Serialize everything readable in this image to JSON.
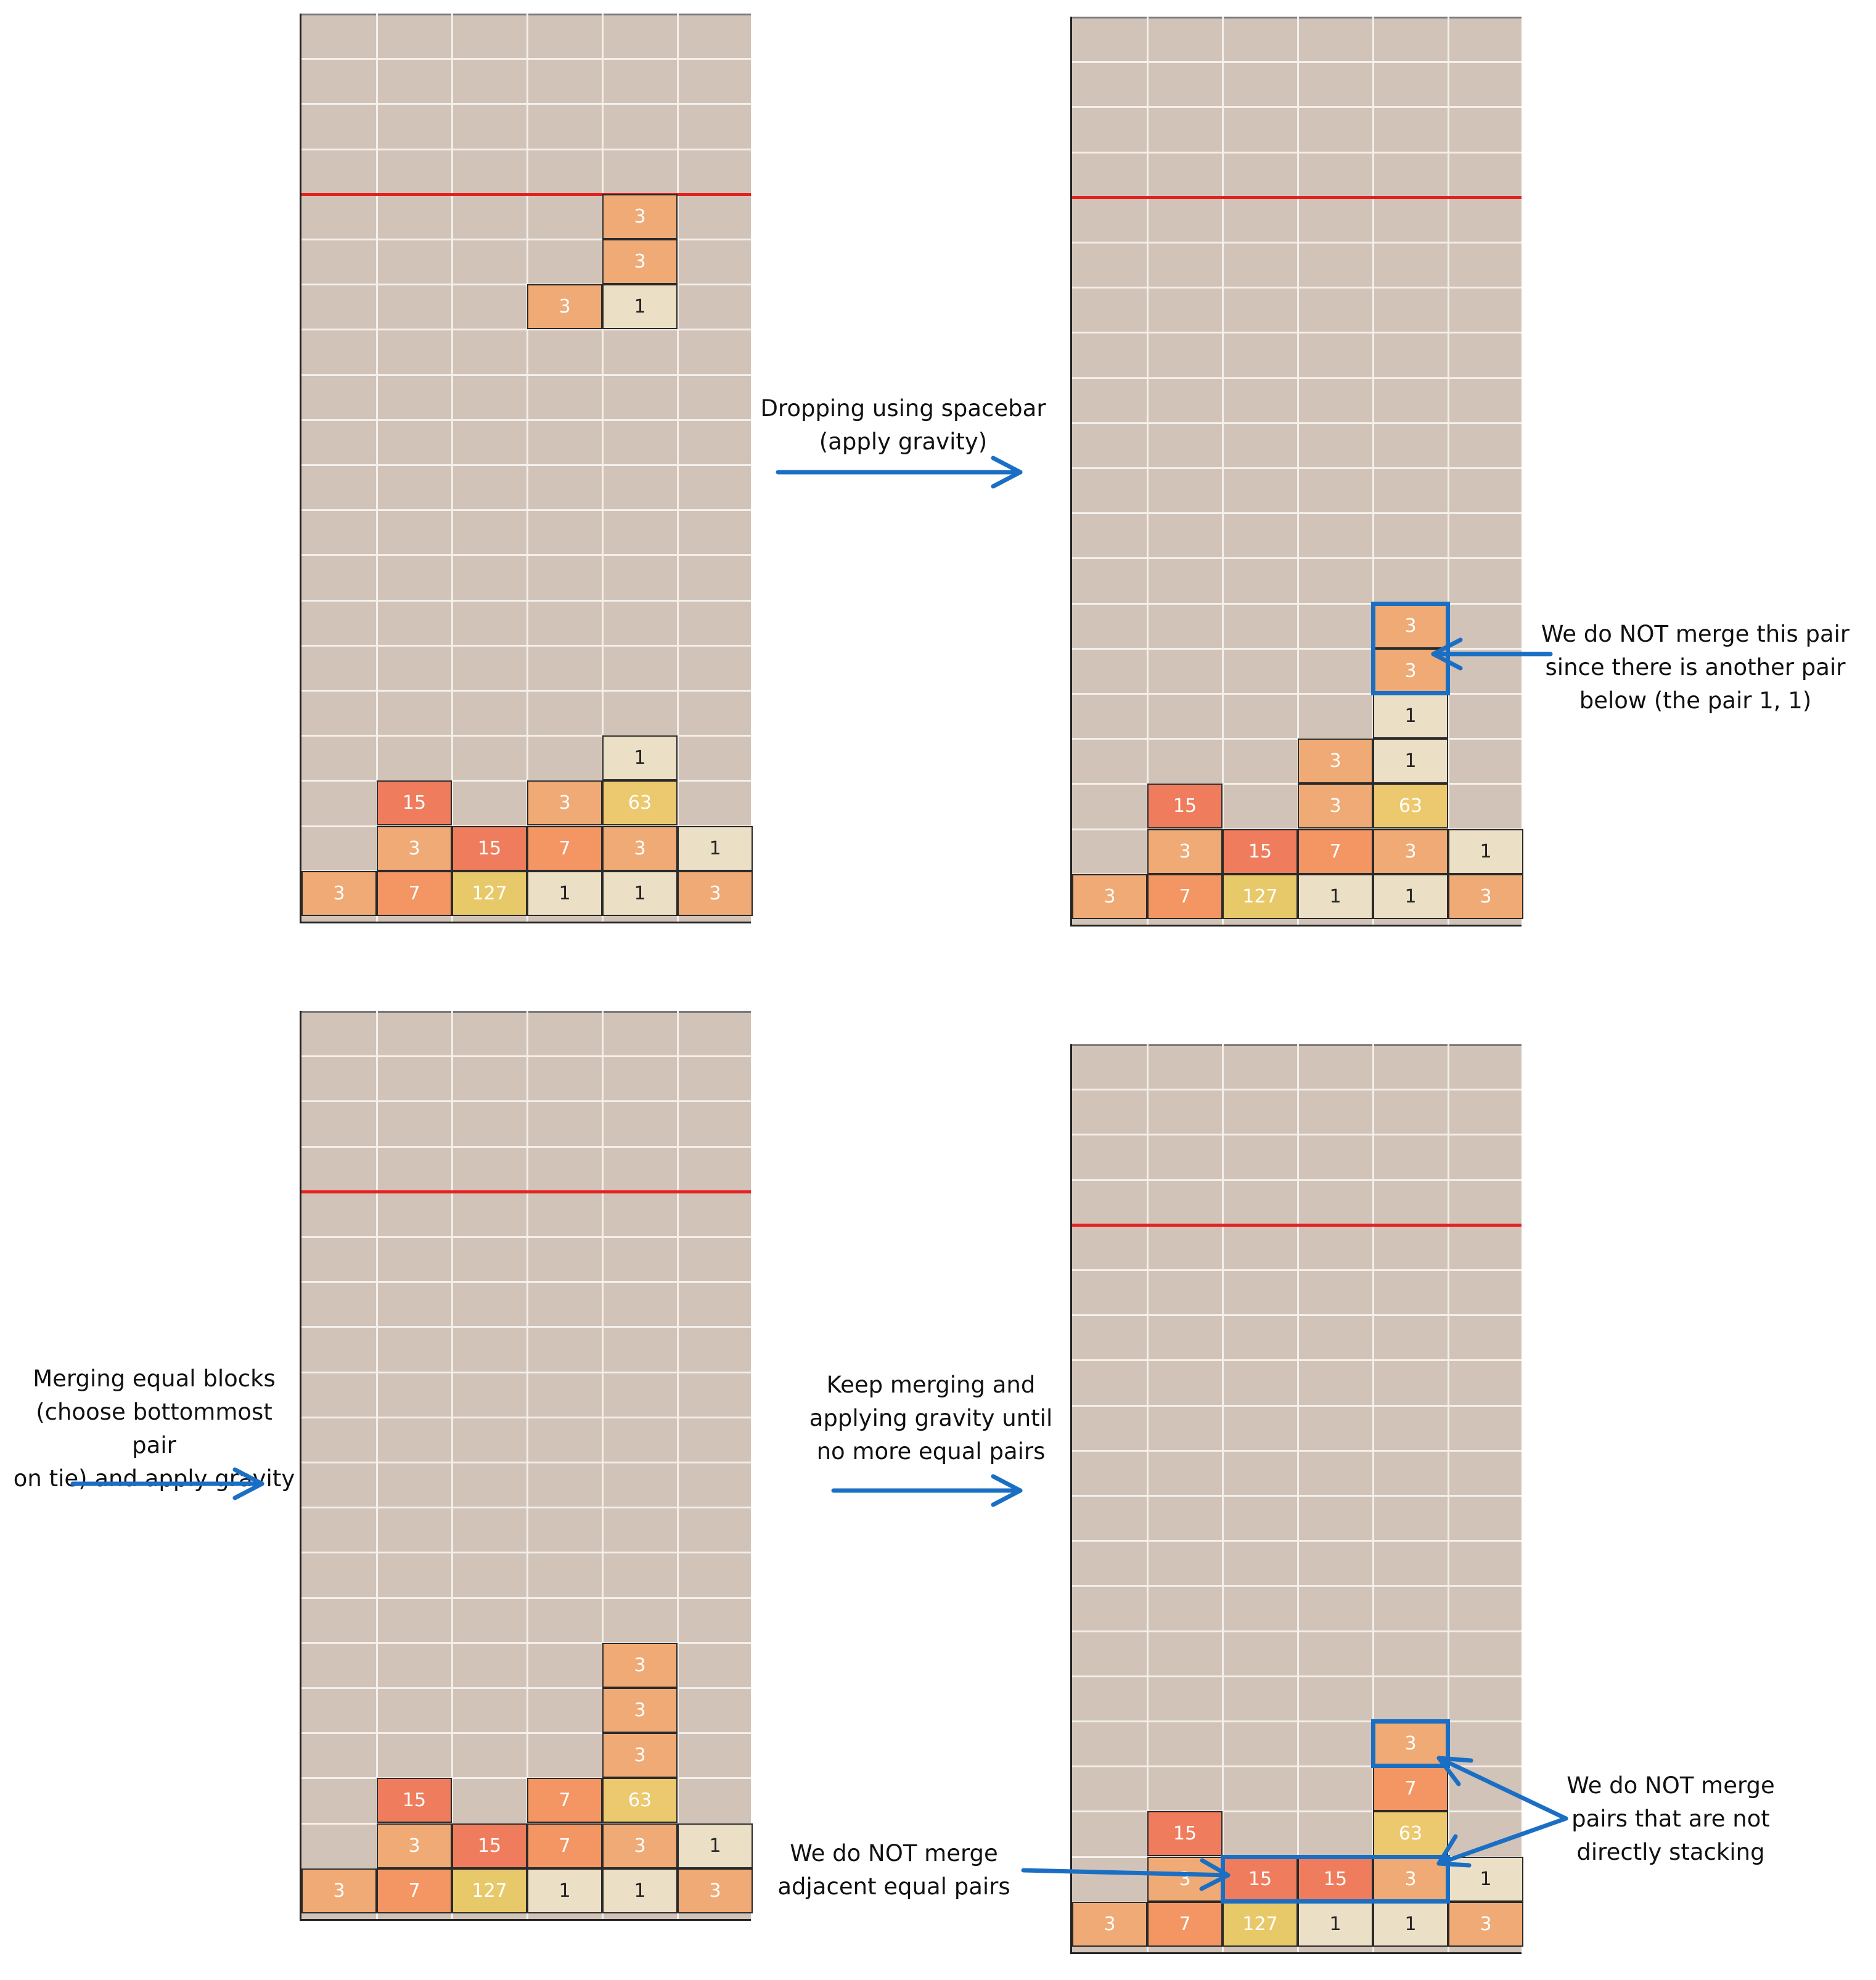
{
  "panels": [
    {
      "id": "panel-1",
      "rows": [
        [
          "",
          "",
          "",
          "",
          "",
          ""
        ],
        [
          "",
          "",
          "",
          "",
          "",
          ""
        ],
        [
          "",
          "",
          "",
          "",
          "",
          ""
        ],
        [
          "",
          "",
          "",
          "",
          "",
          ""
        ],
        [
          "",
          "",
          "",
          "",
          "3",
          ""
        ],
        [
          "",
          "",
          "",
          "",
          "3",
          ""
        ],
        [
          "",
          "",
          "",
          "3",
          "1",
          ""
        ],
        [
          "",
          "",
          "",
          "",
          "",
          ""
        ],
        [
          "",
          "",
          "",
          "",
          "",
          ""
        ],
        [
          "",
          "",
          "",
          "",
          "",
          ""
        ],
        [
          "",
          "",
          "",
          "",
          "",
          ""
        ],
        [
          "",
          "",
          "",
          "",
          "",
          ""
        ],
        [
          "",
          "",
          "",
          "",
          "",
          ""
        ],
        [
          "",
          "",
          "",
          "",
          "",
          ""
        ],
        [
          "",
          "",
          "",
          "",
          "",
          ""
        ],
        [
          "",
          "",
          "",
          "",
          "",
          ""
        ],
        [
          "",
          "",
          "",
          "",
          "1",
          ""
        ],
        [
          "",
          "15",
          "",
          "3",
          "63",
          ""
        ],
        [
          "",
          "3",
          "15",
          "7",
          "3",
          "1"
        ],
        [
          "3",
          "7",
          "127",
          "1",
          "1",
          "3"
        ]
      ]
    },
    {
      "id": "panel-2",
      "rows": [
        [
          "",
          "",
          "",
          "",
          "",
          ""
        ],
        [
          "",
          "",
          "",
          "",
          "",
          ""
        ],
        [
          "",
          "",
          "",
          "",
          "",
          ""
        ],
        [
          "",
          "",
          "",
          "",
          "",
          ""
        ],
        [
          "",
          "",
          "",
          "",
          "",
          ""
        ],
        [
          "",
          "",
          "",
          "",
          "",
          ""
        ],
        [
          "",
          "",
          "",
          "",
          "",
          ""
        ],
        [
          "",
          "",
          "",
          "",
          "",
          ""
        ],
        [
          "",
          "",
          "",
          "",
          "",
          ""
        ],
        [
          "",
          "",
          "",
          "",
          "",
          ""
        ],
        [
          "",
          "",
          "",
          "",
          "",
          ""
        ],
        [
          "",
          "",
          "",
          "",
          "",
          ""
        ],
        [
          "",
          "",
          "",
          "",
          "",
          ""
        ],
        [
          "",
          "",
          "",
          "",
          "3",
          ""
        ],
        [
          "",
          "",
          "",
          "",
          "3",
          ""
        ],
        [
          "",
          "",
          "",
          "",
          "1",
          ""
        ],
        [
          "",
          "",
          "",
          "3",
          "1",
          ""
        ],
        [
          "",
          "15",
          "",
          "3",
          "63",
          ""
        ],
        [
          "",
          "3",
          "15",
          "7",
          "3",
          "1"
        ],
        [
          "3",
          "7",
          "127",
          "1",
          "1",
          "3"
        ]
      ]
    },
    {
      "id": "panel-3",
      "rows": [
        [
          "",
          "",
          "",
          "",
          "",
          ""
        ],
        [
          "",
          "",
          "",
          "",
          "",
          ""
        ],
        [
          "",
          "",
          "",
          "",
          "",
          ""
        ],
        [
          "",
          "",
          "",
          "",
          "",
          ""
        ],
        [
          "",
          "",
          "",
          "",
          "",
          ""
        ],
        [
          "",
          "",
          "",
          "",
          "",
          ""
        ],
        [
          "",
          "",
          "",
          "",
          "",
          ""
        ],
        [
          "",
          "",
          "",
          "",
          "",
          ""
        ],
        [
          "",
          "",
          "",
          "",
          "",
          ""
        ],
        [
          "",
          "",
          "",
          "",
          "",
          ""
        ],
        [
          "",
          "",
          "",
          "",
          "",
          ""
        ],
        [
          "",
          "",
          "",
          "",
          "",
          ""
        ],
        [
          "",
          "",
          "",
          "",
          "",
          ""
        ],
        [
          "",
          "",
          "",
          "",
          "",
          ""
        ],
        [
          "",
          "",
          "",
          "",
          "3",
          ""
        ],
        [
          "",
          "",
          "",
          "",
          "3",
          ""
        ],
        [
          "",
          "",
          "",
          "",
          "3",
          ""
        ],
        [
          "",
          "15",
          "",
          "7",
          "63",
          ""
        ],
        [
          "",
          "3",
          "15",
          "7",
          "3",
          "1"
        ],
        [
          "3",
          "7",
          "127",
          "1",
          "1",
          "3"
        ]
      ]
    },
    {
      "id": "panel-4",
      "rows": [
        [
          "",
          "",
          "",
          "",
          "",
          ""
        ],
        [
          "",
          "",
          "",
          "",
          "",
          ""
        ],
        [
          "",
          "",
          "",
          "",
          "",
          ""
        ],
        [
          "",
          "",
          "",
          "",
          "",
          ""
        ],
        [
          "",
          "",
          "",
          "",
          "",
          ""
        ],
        [
          "",
          "",
          "",
          "",
          "",
          ""
        ],
        [
          "",
          "",
          "",
          "",
          "",
          ""
        ],
        [
          "",
          "",
          "",
          "",
          "",
          ""
        ],
        [
          "",
          "",
          "",
          "",
          "",
          ""
        ],
        [
          "",
          "",
          "",
          "",
          "",
          ""
        ],
        [
          "",
          "",
          "",
          "",
          "",
          ""
        ],
        [
          "",
          "",
          "",
          "",
          "",
          ""
        ],
        [
          "",
          "",
          "",
          "",
          "",
          ""
        ],
        [
          "",
          "",
          "",
          "",
          "",
          ""
        ],
        [
          "",
          "",
          "",
          "",
          "",
          ""
        ],
        [
          "",
          "",
          "",
          "",
          "3",
          ""
        ],
        [
          "",
          "",
          "",
          "",
          "7",
          ""
        ],
        [
          "",
          "15",
          "",
          "",
          "63",
          ""
        ],
        [
          "",
          "3",
          "15",
          "15",
          "3",
          "1"
        ],
        [
          "3",
          "7",
          "127",
          "1",
          "1",
          "3"
        ]
      ]
    }
  ],
  "colors": {
    "board": "#d1c3b8",
    "limit_line": "#e52222",
    "highlight": "#1a6fc4",
    "tile_1": "#ebdfc6",
    "tile_3": "#efaa75",
    "tile_7": "#f39663",
    "tile_15": "#ef7d5d",
    "tile_63": "#ecc96e",
    "tile_127": "#e8c96a"
  },
  "captions": {
    "drop": "Dropping using spacebar\n(apply gravity)",
    "no_merge_pair": "We do NOT merge this pair\nsince there is another pair\nbelow (the pair 1, 1)",
    "merging": "Merging equal blocks\n(choose bottommost pair\non tie) and apply gravity",
    "keep_merging": "Keep merging and\napplying gravity until\nno more equal pairs",
    "no_merge_adjacent": "We do NOT merge\nadjacent equal pairs",
    "no_merge_not_stacking": "We do NOT merge\npairs that are not\ndirectly stacking"
  }
}
